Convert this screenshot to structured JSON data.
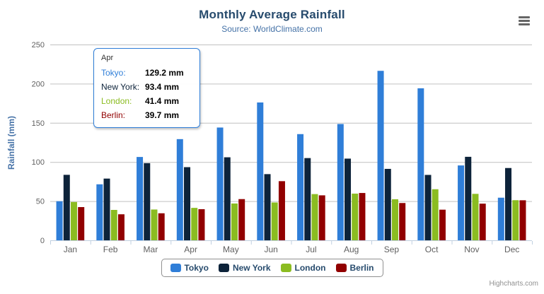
{
  "chart": {
    "title": "Monthly Average Rainfall",
    "subtitle": "Source: WorldClimate.com",
    "credits": "Highcharts.com"
  },
  "chart_data": {
    "type": "bar",
    "title": "Monthly Average Rainfall",
    "subtitle": "Source: WorldClimate.com",
    "categories": [
      "Jan",
      "Feb",
      "Mar",
      "Apr",
      "May",
      "Jun",
      "Jul",
      "Aug",
      "Sep",
      "Oct",
      "Nov",
      "Dec"
    ],
    "series": [
      {
        "name": "Tokyo",
        "color": "#2f7ed8",
        "values": [
          49.9,
          71.5,
          106.4,
          129.2,
          144.0,
          176.0,
          135.6,
          148.5,
          216.4,
          194.1,
          95.6,
          54.4
        ]
      },
      {
        "name": "New York",
        "color": "#0d233a",
        "values": [
          83.6,
          78.8,
          98.5,
          93.4,
          106.0,
          84.5,
          105.0,
          104.3,
          91.2,
          83.5,
          106.6,
          92.3
        ]
      },
      {
        "name": "London",
        "color": "#8bbc21",
        "values": [
          48.9,
          38.8,
          39.3,
          41.4,
          47.0,
          48.3,
          59.0,
          59.6,
          52.4,
          65.2,
          59.3,
          51.2
        ]
      },
      {
        "name": "Berlin",
        "color": "#910000",
        "values": [
          42.4,
          33.2,
          34.5,
          39.7,
          52.6,
          75.5,
          57.4,
          60.4,
          47.6,
          39.1,
          46.8,
          51.1
        ]
      }
    ],
    "xlabel": "",
    "ylabel": "Rainfall (mm)",
    "ylim": [
      0,
      250
    ],
    "yticks": [
      0,
      50,
      100,
      150,
      200,
      250
    ],
    "grid": true,
    "legend_position": "bottom"
  },
  "tooltip": {
    "category": "Apr",
    "rows": [
      {
        "series": "Tokyo",
        "label": "Tokyo:",
        "color": "#2f7ed8",
        "value": "129.2 mm"
      },
      {
        "series": "New York",
        "label": "New York:",
        "color": "#0d233a",
        "value": "93.4 mm"
      },
      {
        "series": "London",
        "label": "London:",
        "color": "#8bbc21",
        "value": "41.4 mm"
      },
      {
        "series": "Berlin",
        "label": "Berlin:",
        "color": "#910000",
        "value": "39.7 mm"
      }
    ]
  },
  "colors": {
    "title": "#274b6d",
    "subtitle": "#4572a7",
    "axis_labels": "#606060",
    "gridline": "#c0c0c0",
    "axis_line": "#c0d0e0",
    "tooltip_border": "#2f7ed8",
    "legend_border": "#909090",
    "credits": "#909090"
  }
}
